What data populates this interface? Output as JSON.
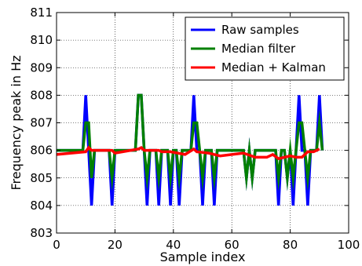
{
  "chart_data": {
    "type": "line",
    "xlabel": "Sample index",
    "ylabel": "Frequency peak in Hz",
    "xlim": [
      0,
      100
    ],
    "ylim": [
      803,
      811
    ],
    "xticks": [
      "0",
      "20",
      "40",
      "60",
      "80",
      "100"
    ],
    "yticks": [
      "803",
      "804",
      "805",
      "806",
      "807",
      "808",
      "809",
      "810",
      "811"
    ],
    "grid": true,
    "legend_position": "top-right",
    "series": [
      {
        "name": "Raw samples",
        "color": "#0000ff",
        "x": [
          0,
          1,
          2,
          3,
          4,
          5,
          6,
          7,
          8,
          9,
          10,
          11,
          12,
          13,
          14,
          15,
          16,
          17,
          18,
          19,
          20,
          21,
          22,
          23,
          24,
          25,
          26,
          27,
          28,
          29,
          30,
          31,
          32,
          33,
          34,
          35,
          36,
          37,
          38,
          39,
          40,
          41,
          42,
          43,
          44,
          45,
          46,
          47,
          48,
          49,
          50,
          51,
          52,
          53,
          54,
          55,
          56,
          57,
          58,
          59,
          60,
          61,
          62,
          63,
          64,
          65,
          66,
          67,
          68,
          69,
          70,
          71,
          72,
          73,
          74,
          75,
          76,
          77,
          78,
          79,
          80,
          81,
          82,
          83,
          84,
          85,
          86,
          87,
          88,
          89,
          90,
          91
        ],
        "y": [
          806,
          806,
          806,
          806,
          806,
          806,
          806,
          806,
          806,
          806,
          808,
          806,
          804,
          806,
          806,
          806,
          806,
          806,
          806,
          804,
          806,
          806,
          806,
          806,
          806,
          806,
          806,
          806,
          808,
          808,
          806,
          804,
          806,
          806,
          806,
          804,
          806,
          806,
          806,
          804,
          806,
          806,
          804,
          806,
          806,
          806,
          806,
          808,
          806,
          806,
          804,
          806,
          806,
          806,
          804,
          806,
          806,
          806,
          806,
          806,
          806,
          806,
          806,
          806,
          806,
          805,
          806,
          805,
          806,
          806,
          806,
          806,
          806,
          806,
          806,
          806,
          804,
          806,
          806,
          805,
          806,
          804,
          806,
          808,
          806,
          806,
          804,
          806,
          806,
          806,
          808,
          806
        ]
      },
      {
        "name": "Median filter",
        "color": "#008000",
        "x": [
          0,
          1,
          2,
          3,
          4,
          5,
          6,
          7,
          8,
          9,
          10,
          11,
          12,
          13,
          14,
          15,
          16,
          17,
          18,
          19,
          20,
          21,
          22,
          23,
          24,
          25,
          26,
          27,
          28,
          29,
          30,
          31,
          32,
          33,
          34,
          35,
          36,
          37,
          38,
          39,
          40,
          41,
          42,
          43,
          44,
          45,
          46,
          47,
          48,
          49,
          50,
          51,
          52,
          53,
          54,
          55,
          56,
          57,
          58,
          59,
          60,
          61,
          62,
          63,
          64,
          65,
          66,
          67,
          68,
          69,
          70,
          71,
          72,
          73,
          74,
          75,
          76,
          77,
          78,
          79,
          80,
          81,
          82,
          83,
          84,
          85,
          86,
          87,
          88,
          89,
          90,
          91
        ],
        "y": [
          806,
          806,
          806,
          806,
          806,
          806,
          806,
          806,
          806,
          806,
          807,
          807,
          805,
          806,
          806,
          806,
          806,
          806,
          806,
          805,
          806,
          806,
          806,
          806,
          806,
          806,
          806,
          806,
          808,
          808,
          806,
          805,
          806,
          806,
          806,
          805,
          806,
          806,
          806,
          805,
          806,
          806,
          805,
          806,
          806,
          806,
          806,
          807,
          807,
          806,
          805,
          806,
          806,
          806,
          805,
          806,
          806,
          806,
          806,
          806,
          806,
          806,
          806,
          806,
          806,
          805,
          806,
          805,
          806,
          806,
          806,
          806,
          806,
          806,
          806,
          806,
          805,
          806,
          806,
          805,
          806,
          805,
          806,
          807,
          807,
          806,
          805,
          806,
          806,
          806,
          807,
          806
        ]
      },
      {
        "name": "Median + Kalman",
        "color": "#ff0000",
        "x": [
          0,
          10,
          11,
          12,
          19,
          20,
          28,
          29,
          30,
          35,
          36,
          39,
          44,
          47,
          48,
          52,
          56,
          60,
          64,
          68,
          72,
          74,
          76,
          80,
          82,
          84,
          86,
          88,
          90
        ],
        "y": [
          805.85,
          805.95,
          806.1,
          806.0,
          806.0,
          805.9,
          806.05,
          806.1,
          806.0,
          806.0,
          805.95,
          805.95,
          805.85,
          806.05,
          805.95,
          805.9,
          805.8,
          805.85,
          805.9,
          805.75,
          805.75,
          805.85,
          805.7,
          805.8,
          805.75,
          805.75,
          805.95,
          805.95,
          806.05
        ]
      }
    ]
  }
}
